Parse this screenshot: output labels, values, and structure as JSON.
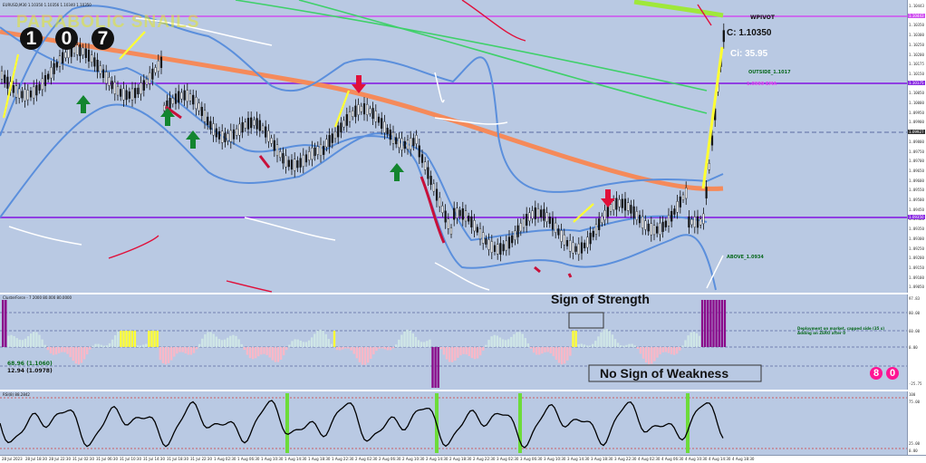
{
  "chart": {
    "symbol_line": "EURUSD,M30  1.10350 1.10356 1.10340 1.10350",
    "title_overlay": "PARABOLIC SNAILS",
    "counter_digits": [
      "1",
      "0",
      "7"
    ],
    "labels": {
      "wpivot": "WPIVOT",
      "close": "C: 1.10350",
      "ci": "Ci: 35.95",
      "outside": "OUTSIDE_1.1017",
      "ema": "1.0999 EMA",
      "above": "ABOVE_1.0934"
    },
    "price_axis": [
      "1.10443",
      "1.10395",
      "1.10350",
      "1.10300",
      "1.10250",
      "1.10200",
      "1.10175",
      "1.10150",
      "1.10100",
      "1.10050",
      "1.10000",
      "1.09950",
      "1.09900",
      "1.09850",
      "1.09800",
      "1.09750",
      "1.09700",
      "1.09650",
      "1.09600",
      "1.09550",
      "1.09500",
      "1.09450",
      "1.09400",
      "1.09350",
      "1.09300",
      "1.09250",
      "1.09200",
      "1.09150",
      "1.09100",
      "1.09050"
    ],
    "highlight_prices": {
      "top": "1.10443",
      "mid": "1.10175",
      "low": "1.09350",
      "dash": "1.09927"
    }
  },
  "oscillator": {
    "title": "ClusterForce - 7 2000 80.000 80.0000",
    "sign_strength": "Sign of Strength",
    "sign_weakness": "No Sign of Weakness",
    "value_a": "68.96  (1.1060)",
    "value_b": "12.94  (1.0978)",
    "deployment_note": "Deployment on market, capped side (35 s) Adding on ZERO after 0",
    "pills": [
      "8",
      "0"
    ],
    "axis": [
      "97.83",
      "80.00",
      "60.00",
      "0.00",
      "-25.75"
    ]
  },
  "stoch": {
    "title": "RSI(8) 88.2842",
    "axis": [
      "100",
      "75.00",
      "25.00",
      "0.00"
    ]
  },
  "time_axis": [
    "28 Jul 2023",
    "28 Jul 18:30",
    "28 Jul 22:30",
    "31 Jul 02:30",
    "31 Jul 06:30",
    "31 Jul 10:30",
    "31 Jul 14:30",
    "31 Jul 18:30",
    "31 Jul 22:30",
    "1 Aug 02:30",
    "1 Aug 06:30",
    "1 Aug 10:30",
    "1 Aug 14:30",
    "1 Aug 18:30",
    "1 Aug 22:30",
    "2 Aug 02:30",
    "2 Aug 06:30",
    "2 Aug 10:30",
    "2 Aug 14:30",
    "2 Aug 18:30",
    "2 Aug 22:30",
    "3 Aug 02:30",
    "3 Aug 06:30",
    "3 Aug 10:30",
    "3 Aug 14:30",
    "3 Aug 18:30",
    "3 Aug 22:30",
    "4 Aug 02:30",
    "4 Aug 06:30",
    "4 Aug 10:30",
    "4 Aug 14:30",
    "4 Aug 18:30"
  ],
  "colors": {
    "background": "#b9c9e3",
    "ema": "#f58a5a",
    "band": "#5b8fdc",
    "up_arrow": "#13852f",
    "down_arrow": "#e0103a",
    "pivot": "#d050f0",
    "hist_pos": "#cfe6e6",
    "hist_neg": "#f8b8c8"
  }
}
